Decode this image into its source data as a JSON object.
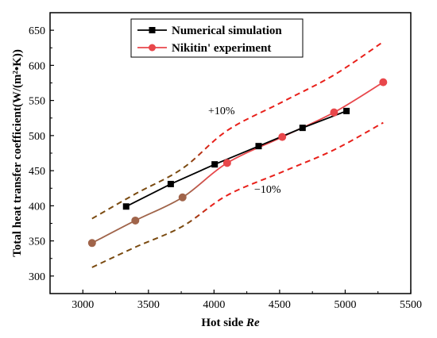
{
  "chart_data": {
    "type": "line",
    "title": "",
    "xlabel_prefix": "Hot side ",
    "xlabel_italic": "Re",
    "ylabel": "Total heat transfer coefficient(W/(m²•K))",
    "xlim": [
      2750,
      5500
    ],
    "ylim": [
      275,
      675
    ],
    "xticks": [
      3000,
      3500,
      4000,
      4500,
      5000,
      5500
    ],
    "yticks": [
      300,
      350,
      400,
      450,
      500,
      550,
      600,
      650
    ],
    "grid": false,
    "legend_position": "top-center",
    "series": [
      {
        "name": "Numerical simulation",
        "color": "#000000",
        "marker": "square",
        "x": [
          3330,
          3670,
          4005,
          4340,
          4675,
          5010
        ],
        "y": [
          399,
          431,
          459,
          485,
          511,
          535
        ]
      },
      {
        "name": "Nikitin' experiment",
        "color": "#e8474b",
        "marker": "circle",
        "x": [
          3070,
          3400,
          3760,
          4100,
          4520,
          4915,
          5290
        ],
        "y": [
          347,
          379,
          412,
          461,
          498,
          533,
          576
        ]
      }
    ],
    "bounds": {
      "upper": {
        "x": [
          3070,
          3400,
          3760,
          4100,
          4520,
          4915,
          5290
        ],
        "y": [
          381.7,
          416.9,
          453.2,
          507.1,
          547.8,
          586.3,
          633.6
        ]
      },
      "lower": {
        "x": [
          3070,
          3400,
          3760,
          4100,
          4520,
          4915,
          5290
        ],
        "y": [
          312.3,
          341.1,
          370.8,
          414.9,
          448.2,
          479.7,
          518.4
        ]
      },
      "upper_label": "+10%",
      "lower_label": "−10%",
      "color_left": "#7a4a10",
      "color_right": "#e8201a"
    }
  }
}
